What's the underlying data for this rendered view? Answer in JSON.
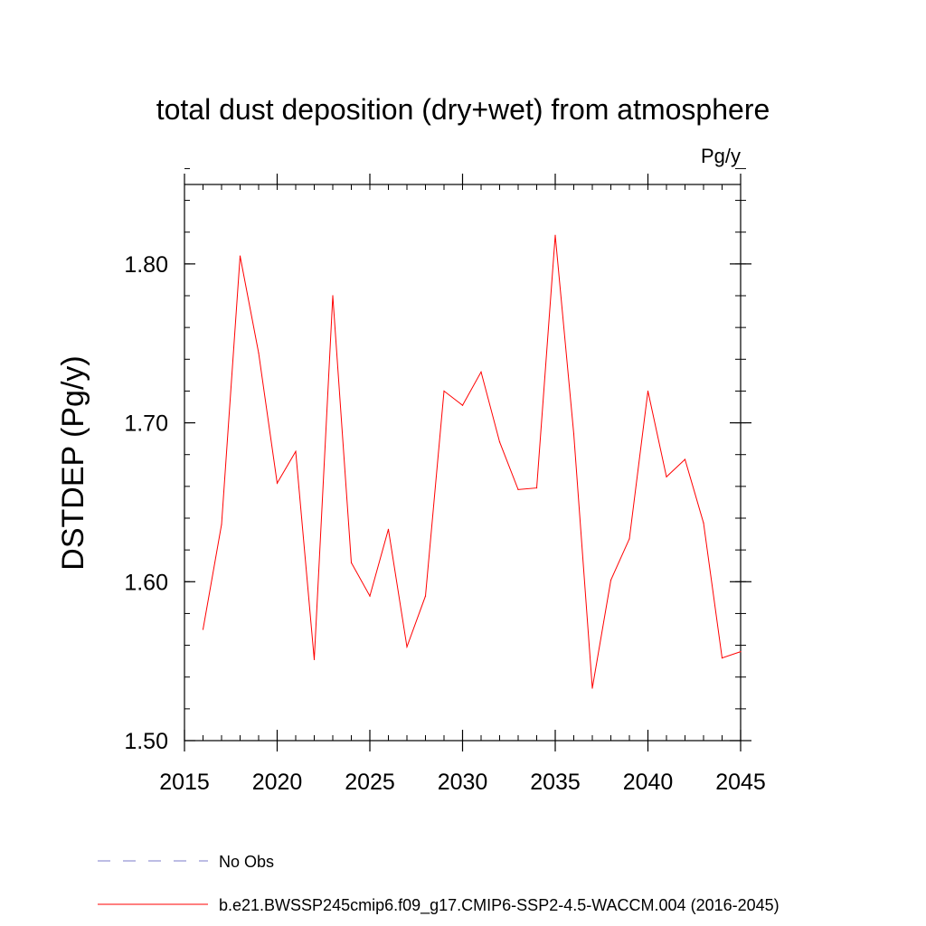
{
  "chart_data": {
    "type": "line",
    "title": "total dust deposition (dry+wet) from atmosphere",
    "units_label": "Pg/y",
    "ylabel": "DSTDEP  (Pg/y)",
    "xlabel": "",
    "xlim": [
      2015,
      2045
    ],
    "ylim": [
      1.5,
      1.85
    ],
    "x_ticks": [
      2015,
      2020,
      2025,
      2030,
      2035,
      2040,
      2045
    ],
    "x_tick_labels": [
      "2015",
      "2020",
      "2025",
      "2030",
      "2035",
      "2040",
      "2045"
    ],
    "y_ticks": [
      1.5,
      1.6,
      1.7,
      1.8
    ],
    "y_tick_labels": [
      "1.50",
      "1.60",
      "1.70",
      "1.80"
    ],
    "y_minor_step": 0.02,
    "x_minor_step": 1,
    "grid": false,
    "legend_position": "bottom-left",
    "series": [
      {
        "name": "b.e21.BWSSP245cmip6.f09_g17.CMIP6-SSP2-4.5-WACCM.004 (2016-2045)",
        "color": "#ff0000",
        "style": "solid",
        "x": [
          2016,
          2017,
          2018,
          2019,
          2020,
          2021,
          2022,
          2023,
          2024,
          2025,
          2026,
          2027,
          2028,
          2029,
          2030,
          2031,
          2032,
          2033,
          2034,
          2035,
          2036,
          2037,
          2038,
          2039,
          2040,
          2041,
          2042,
          2043,
          2044,
          2045
        ],
        "y": [
          1.57,
          1.636,
          1.805,
          1.744,
          1.662,
          1.682,
          1.551,
          1.78,
          1.612,
          1.591,
          1.633,
          1.559,
          1.591,
          1.72,
          1.711,
          1.732,
          1.688,
          1.658,
          1.659,
          1.818,
          1.693,
          1.533,
          1.601,
          1.627,
          1.72,
          1.666,
          1.677,
          1.637,
          1.552,
          1.556
        ]
      }
    ],
    "legend": [
      {
        "label": "No Obs",
        "color": "#7b7bc8",
        "style": "dashed"
      },
      {
        "label": "b.e21.BWSSP245cmip6.f09_g17.CMIP6-SSP2-4.5-WACCM.004 (2016-2045)",
        "color": "#ff0000",
        "style": "solid"
      }
    ]
  }
}
